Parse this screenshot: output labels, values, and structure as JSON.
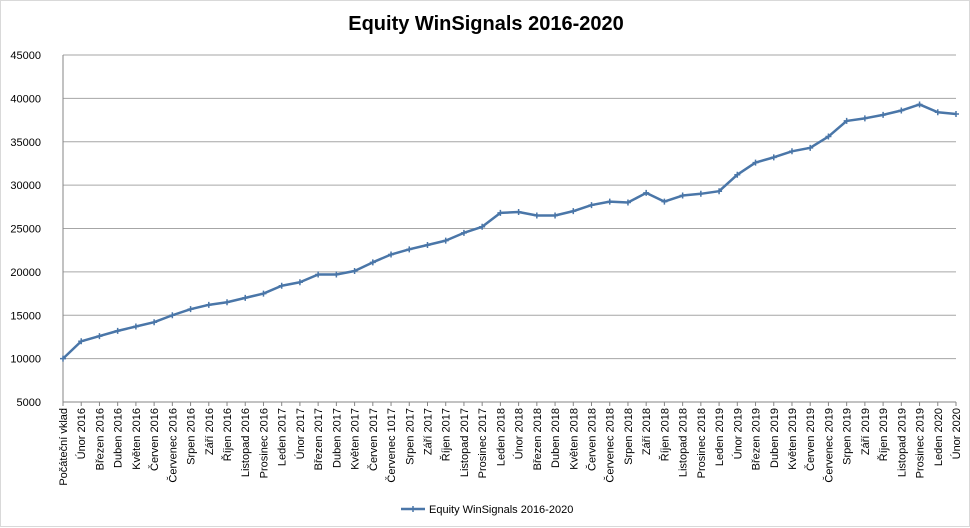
{
  "chart_data": {
    "type": "line",
    "title": "Equity WinSignals 2016-2020",
    "xlabel": "",
    "ylabel": "",
    "ylim": [
      5000,
      45000
    ],
    "yticks": [
      5000,
      10000,
      15000,
      20000,
      25000,
      30000,
      35000,
      40000,
      45000
    ],
    "grid": true,
    "legend_position": "bottom",
    "colors": {
      "series": "#4a76a8",
      "grid": "#a6a6a6",
      "axis": "#868686"
    },
    "categories": [
      "Počáteční vklad",
      "Únor 2016",
      "Březen 2016",
      "Duben 2016",
      "Květen 2016",
      "Červen 2016",
      "Červenec 2016",
      "Srpen 2016",
      "Září 2016",
      "Říjen 2016",
      "Listopad 2016",
      "Prosinec 2016",
      "Leden 2017",
      "Únor 2017",
      "Březen 2017",
      "Duben 2017",
      "Květen 2017",
      "Červen 2017",
      "Červenec 1017",
      "Srpen 2017",
      "Září 2017",
      "Říjen 2017",
      "Listopad 2017",
      "Prosinec 2017",
      "Leden 2018",
      "Únor 2018",
      "Březen 2018",
      "Duben 2018",
      "Květen 2018",
      "Červen 2018",
      "Červenec 2018",
      "Srpen 2018",
      "Září 2018",
      "Říjen 2018",
      "Listopad 2018",
      "Prosinec 2018",
      "Leden 2019",
      "Únor 2019",
      "Březen 2019",
      "Duben 2019",
      "Květen 2019",
      "Červen 2019",
      "Červenec 2019",
      "Srpen 2019",
      "Září 2019",
      "Říjen 2019",
      "Listopad 2019",
      "Prosinec 2019",
      "Leden 2020",
      "Únor 2020"
    ],
    "series": [
      {
        "name": "Equity WinSignals 2016-2020",
        "values": [
          10000,
          12000,
          12600,
          13200,
          13700,
          14200,
          15000,
          15700,
          16200,
          16500,
          17000,
          17500,
          18400,
          18800,
          19700,
          19700,
          20100,
          21100,
          22000,
          22600,
          23100,
          23600,
          24500,
          25200,
          26800,
          26900,
          26500,
          26500,
          27000,
          27700,
          28100,
          28000,
          29100,
          28100,
          28800,
          29000,
          29300,
          31200,
          32600,
          33200,
          33900,
          34300,
          35600,
          37400,
          37700,
          38100,
          38600,
          39300,
          38400,
          38200
        ]
      }
    ]
  }
}
